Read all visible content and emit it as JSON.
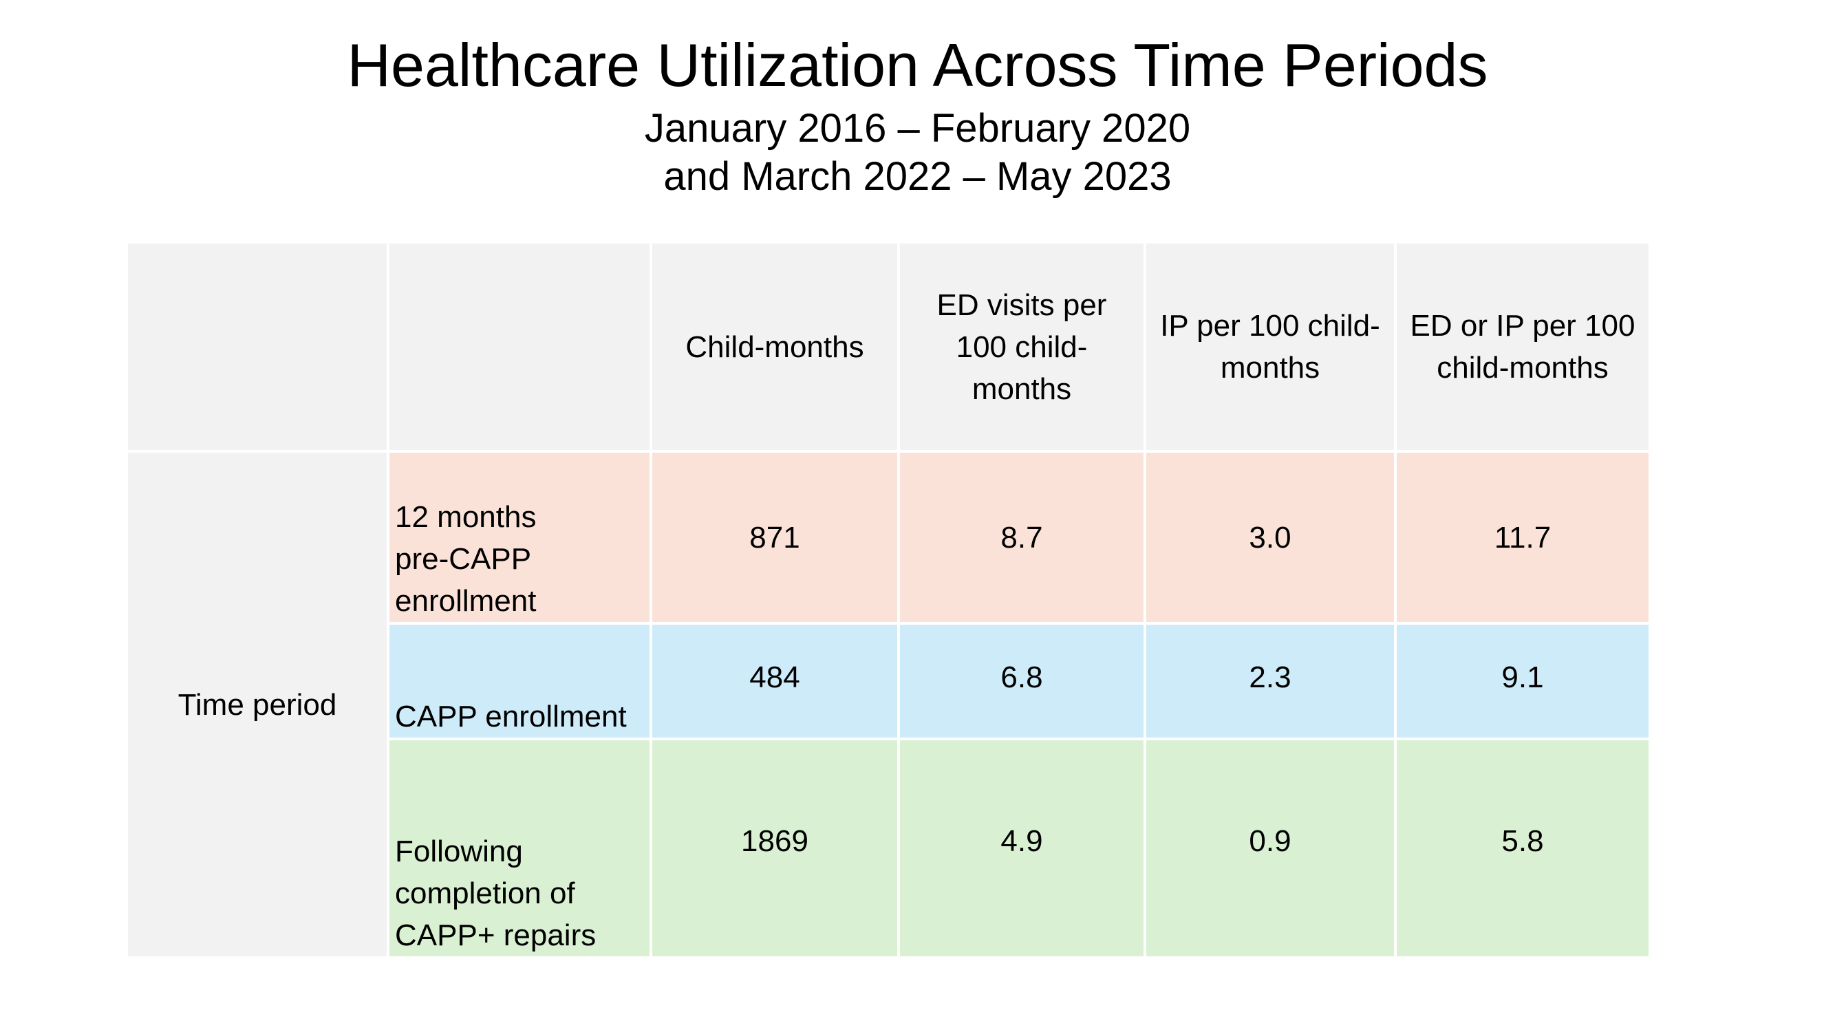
{
  "slide": {
    "title": "Healthcare Utilization Across Time Periods",
    "subtitle_line1": "January 2016 – February 2020",
    "subtitle_line2": "and March 2022 – May 2023"
  },
  "table": {
    "headers": [
      "",
      "",
      "Child-months",
      "ED visits per\n100 child-\nmonths",
      "IP per 100 child-\nmonths",
      "ED or IP per 100\nchild-months"
    ],
    "row_group_label": "Time period",
    "rows": [
      {
        "label": "12 months\npre-CAPP\nenrollment",
        "child_months": "871",
        "ed_visits": "8.7",
        "ip": "3.0",
        "ed_or_ip": "11.7"
      },
      {
        "label": "CAPP enrollment",
        "child_months": "484",
        "ed_visits": "6.8",
        "ip": "2.3",
        "ed_or_ip": "9.1"
      },
      {
        "label": "Following\ncompletion of\nCAPP+ repairs",
        "child_months": "1869",
        "ed_visits": "4.9",
        "ip": "0.9",
        "ed_or_ip": "5.8"
      }
    ],
    "colors": {
      "header_bg": "#f2f2f2",
      "row1_bg": "#fbe2d8",
      "row2_bg": "#cdebf8",
      "row3_bg": "#d9f1d2"
    }
  }
}
